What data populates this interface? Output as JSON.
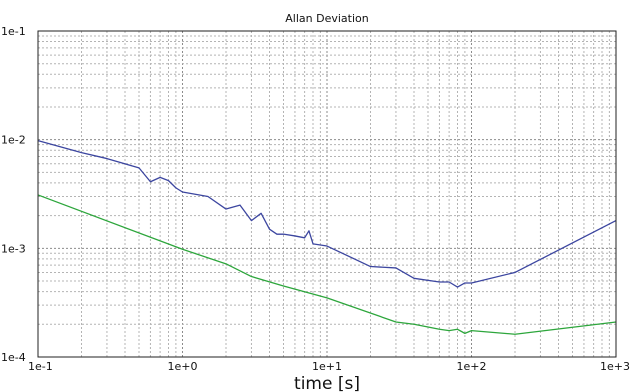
{
  "chart_data": {
    "type": "line",
    "title": "Allan Deviation",
    "xlabel": "time [s]",
    "ylabel": "",
    "xscale": "log",
    "yscale": "log",
    "xlim": [
      0.1,
      1000
    ],
    "ylim": [
      0.0001,
      0.1
    ],
    "grid": true,
    "legend": "none",
    "x_tick_labels": [
      "1e-1",
      "1e+0",
      "1e+1",
      "1e+2",
      "1e+3"
    ],
    "y_tick_labels": [
      "1e-4",
      "1e-3",
      "1e-2",
      "1e-1"
    ],
    "series": [
      {
        "color": "#3c46a0",
        "points": [
          [
            0.1,
            0.0098
          ],
          [
            0.2,
            0.0076
          ],
          [
            0.3,
            0.0067
          ],
          [
            0.5,
            0.0055
          ],
          [
            0.6,
            0.0041
          ],
          [
            0.7,
            0.0045
          ],
          [
            0.8,
            0.0042
          ],
          [
            0.9,
            0.0036
          ],
          [
            1.0,
            0.0033
          ],
          [
            1.5,
            0.003
          ],
          [
            2.0,
            0.0023
          ],
          [
            2.5,
            0.0025
          ],
          [
            3.0,
            0.0018
          ],
          [
            3.5,
            0.0021
          ],
          [
            4.0,
            0.0015
          ],
          [
            4.5,
            0.00135
          ],
          [
            5.0,
            0.00135
          ],
          [
            6.0,
            0.0013
          ],
          [
            7.0,
            0.00125
          ],
          [
            7.5,
            0.00145
          ],
          [
            8.0,
            0.0011
          ],
          [
            10,
            0.00105
          ],
          [
            20,
            0.00068
          ],
          [
            30,
            0.00066
          ],
          [
            40,
            0.00053
          ],
          [
            60,
            0.00049
          ],
          [
            70,
            0.00049
          ],
          [
            80,
            0.00044
          ],
          [
            90,
            0.00048
          ],
          [
            100,
            0.00048
          ],
          [
            200,
            0.0006
          ],
          [
            1000,
            0.0018
          ]
        ]
      },
      {
        "color": "#2da63c",
        "points": [
          [
            0.1,
            0.0031
          ],
          [
            1,
            0.00098
          ],
          [
            2,
            0.00072
          ],
          [
            3,
            0.00055
          ],
          [
            5,
            0.00045
          ],
          [
            10,
            0.00035
          ],
          [
            30,
            0.00021
          ],
          [
            40,
            0.0002
          ],
          [
            60,
            0.00018
          ],
          [
            70,
            0.000175
          ],
          [
            80,
            0.00018
          ],
          [
            90,
            0.000165
          ],
          [
            100,
            0.000175
          ],
          [
            200,
            0.000162
          ],
          [
            1000,
            0.00021
          ]
        ]
      }
    ]
  }
}
